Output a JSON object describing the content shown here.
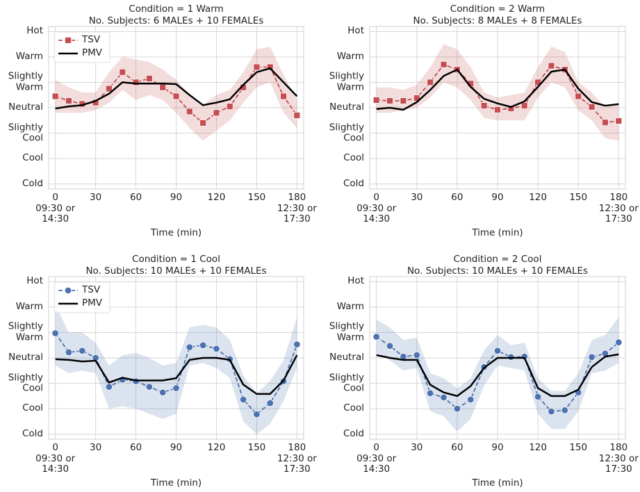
{
  "chart_data": [
    {
      "type": "line",
      "title": "Condition = 1 Warm",
      "subtitle": "No. Subjects: 6 MALEs + 10 FEMALEs",
      "x_label": "Time (min)",
      "x": [
        0,
        10,
        20,
        30,
        40,
        50,
        60,
        70,
        80,
        90,
        100,
        110,
        120,
        130,
        140,
        150,
        160,
        170,
        180
      ],
      "xlim": [
        -5,
        185
      ],
      "ylim": [
        -3.2,
        3.2
      ],
      "grid": true,
      "legend": "upper left",
      "xticks": [
        {
          "value": 0,
          "label": "0\n09:30 or\n14:30"
        },
        30,
        60,
        90,
        120,
        150,
        {
          "value": 180,
          "label": "180\n12:30 or\n17:30"
        }
      ],
      "yticks": [
        {
          "value": -3,
          "label": "Cold"
        },
        {
          "value": -2,
          "label": "Cool"
        },
        {
          "value": -1,
          "label": "Slightly\nCool"
        },
        {
          "value": 0,
          "label": "Neutral"
        },
        {
          "value": 1,
          "label": "Slightly\nWarm"
        },
        {
          "value": 2,
          "label": "Warm"
        },
        {
          "value": 3,
          "label": "Hot"
        }
      ],
      "series": [
        {
          "name": "TSV",
          "color": "#c44e52",
          "marker": "square",
          "dashed": true,
          "values": [
            0.45,
            0.27,
            0.15,
            0.2,
            0.75,
            1.4,
            1.0,
            1.15,
            0.8,
            0.45,
            -0.15,
            -0.6,
            -0.2,
            0.05,
            0.8,
            1.6,
            1.6,
            0.45,
            -0.3
          ],
          "ci_lower": [
            -0.2,
            -0.2,
            -0.2,
            -0.1,
            0.2,
            0.7,
            0.3,
            0.5,
            0.3,
            -0.2,
            -0.8,
            -1.3,
            -0.9,
            -0.5,
            0.2,
            0.8,
            1.0,
            -0.2,
            -0.8
          ],
          "ci_upper": [
            1.1,
            0.8,
            0.6,
            0.6,
            1.4,
            2.0,
            1.9,
            1.8,
            1.5,
            1.1,
            0.5,
            0.1,
            0.5,
            0.7,
            1.4,
            2.3,
            2.4,
            1.3,
            0.3
          ]
        },
        {
          "name": "PMV",
          "color": "#000000",
          "values": [
            -0.03,
            0.05,
            0.1,
            0.27,
            0.55,
            1.0,
            0.95,
            0.95,
            0.95,
            0.93,
            0.5,
            0.1,
            0.2,
            0.33,
            0.9,
            1.4,
            1.55,
            1.0,
            0.45
          ]
        }
      ]
    },
    {
      "type": "line",
      "title": "Condition = 2 Warm",
      "subtitle": "No. Subjects: 8 MALEs + 8 FEMALEs",
      "x_label": "Time (min)",
      "x": [
        0,
        10,
        20,
        30,
        40,
        50,
        60,
        70,
        80,
        90,
        100,
        110,
        120,
        130,
        140,
        150,
        160,
        170,
        180
      ],
      "xlim": [
        -5,
        185
      ],
      "ylim": [
        -3.2,
        3.2
      ],
      "grid": true,
      "xticks": [
        {
          "value": 0,
          "label": "0\n09:30 or\n14:30"
        },
        30,
        60,
        90,
        120,
        150,
        {
          "value": 180,
          "label": "180\n12:30 or\n17:30"
        }
      ],
      "yticks": [
        {
          "value": -3,
          "label": "Cold"
        },
        {
          "value": -2,
          "label": "Cool"
        },
        {
          "value": -1,
          "label": "Slightly\nCool"
        },
        {
          "value": 0,
          "label": "Neutral"
        },
        {
          "value": 1,
          "label": "Slightly\nWarm"
        },
        {
          "value": 2,
          "label": "Warm"
        },
        {
          "value": 3,
          "label": "Hot"
        }
      ],
      "series": [
        {
          "name": "TSV",
          "color": "#c44e52",
          "marker": "square",
          "dashed": true,
          "values": [
            0.3,
            0.27,
            0.27,
            0.38,
            1.0,
            1.7,
            1.5,
            0.95,
            0.08,
            -0.08,
            -0.03,
            0.08,
            1.0,
            1.65,
            1.5,
            0.45,
            0.03,
            -0.58,
            -0.52
          ],
          "ci_lower": [
            -0.2,
            -0.2,
            -0.1,
            0,
            0.4,
            1.0,
            0.8,
            0.3,
            -0.4,
            -0.5,
            -0.5,
            -0.5,
            0.4,
            1.0,
            0.8,
            -0.1,
            -0.5,
            -1.2,
            -1.3
          ],
          "ci_upper": [
            0.8,
            0.8,
            0.7,
            0.9,
            1.6,
            2.5,
            2.3,
            1.6,
            0.6,
            0.4,
            0.5,
            0.6,
            1.6,
            2.4,
            2.2,
            1.0,
            0.6,
            0,
            0.2
          ]
        },
        {
          "name": "PMV",
          "color": "#000000",
          "values": [
            -0.05,
            0,
            -0.08,
            0.22,
            0.7,
            1.25,
            1.5,
            0.82,
            0.35,
            0.17,
            0.03,
            0.25,
            0.82,
            1.42,
            1.5,
            0.75,
            0.22,
            0.08,
            0.14
          ]
        }
      ]
    },
    {
      "type": "line",
      "title": "Condition = 1 Cool",
      "subtitle": "No. Subjects: 10 MALEs + 10 FEMALEs",
      "x_label": "Time (min)",
      "x": [
        0,
        10,
        20,
        30,
        40,
        50,
        60,
        70,
        80,
        90,
        100,
        110,
        120,
        130,
        140,
        150,
        160,
        170,
        180
      ],
      "xlim": [
        -5,
        185
      ],
      "ylim": [
        -3.2,
        3.2
      ],
      "grid": true,
      "legend": "upper left",
      "xticks": [
        {
          "value": 0,
          "label": "0\n09:30 or\n14:30"
        },
        30,
        60,
        90,
        120,
        150,
        {
          "value": 180,
          "label": "180\n12:30 or\n17:30"
        }
      ],
      "yticks": [
        {
          "value": -3,
          "label": "Cold"
        },
        {
          "value": -2,
          "label": "Cool"
        },
        {
          "value": -1,
          "label": "Slightly\nCool"
        },
        {
          "value": 0,
          "label": "Neutral"
        },
        {
          "value": 1,
          "label": "Slightly\nWarm"
        },
        {
          "value": 2,
          "label": "Warm"
        },
        {
          "value": 3,
          "label": "Hot"
        }
      ],
      "series": [
        {
          "name": "TSV",
          "color": "#4c72b0",
          "marker": "circle",
          "dashed": true,
          "values": [
            0.97,
            0.22,
            0.28,
            0,
            -1.14,
            -0.86,
            -0.92,
            -1.14,
            -1.36,
            -1.19,
            0.42,
            0.5,
            0.36,
            -0.05,
            -1.64,
            -2.22,
            -1.78,
            -0.92,
            0.53
          ],
          "ci_lower": [
            -0.3,
            -0.6,
            -0.5,
            -0.6,
            -2.0,
            -1.9,
            -2.0,
            -2.2,
            -2.4,
            -2.2,
            -0.3,
            -0.2,
            -0.4,
            -0.8,
            -2.5,
            -3.0,
            -2.6,
            -1.7,
            -0.4
          ],
          "ci_upper": [
            2.1,
            1.0,
            1.0,
            0.6,
            -0.3,
            0.1,
            0.2,
            0,
            -0.3,
            -0.2,
            1.2,
            1.3,
            1.2,
            0.7,
            -0.7,
            -1.4,
            -0.9,
            -0.1,
            1.6
          ]
        },
        {
          "name": "PMV",
          "color": "#000000",
          "values": [
            -0.05,
            -0.08,
            -0.14,
            -0.11,
            -0.97,
            -0.78,
            -0.89,
            -0.89,
            -0.89,
            -0.8,
            -0.08,
            0,
            0,
            -0.08,
            -1.05,
            -1.42,
            -1.42,
            -0.89,
            0.11
          ]
        }
      ]
    },
    {
      "type": "line",
      "title": "Condition = 2 Cool",
      "subtitle": "No. Subjects: 10 MALEs + 10 FEMALEs",
      "x_label": "Time (min)",
      "x": [
        0,
        10,
        20,
        30,
        40,
        50,
        60,
        70,
        80,
        90,
        100,
        110,
        120,
        130,
        140,
        150,
        160,
        170,
        180
      ],
      "xlim": [
        -5,
        185
      ],
      "ylim": [
        -3.2,
        3.2
      ],
      "grid": true,
      "xticks": [
        {
          "value": 0,
          "label": "0\n09:30 or\n14:30"
        },
        30,
        60,
        90,
        120,
        150,
        {
          "value": 180,
          "label": "180\n12:30 or\n17:30"
        }
      ],
      "yticks": [
        {
          "value": -3,
          "label": "Cold"
        },
        {
          "value": -2,
          "label": "Cool"
        },
        {
          "value": -1,
          "label": "Slightly\nCool"
        },
        {
          "value": 0,
          "label": "Neutral"
        },
        {
          "value": 1,
          "label": "Slightly\nWarm"
        },
        {
          "value": 2,
          "label": "Warm"
        },
        {
          "value": 3,
          "label": "Hot"
        }
      ],
      "series": [
        {
          "name": "TSV",
          "color": "#4c72b0",
          "marker": "circle",
          "dashed": true,
          "values": [
            0.83,
            0.47,
            0.05,
            0.11,
            -1.39,
            -1.56,
            -2.0,
            -1.64,
            -0.36,
            0.28,
            0.03,
            0.05,
            -1.53,
            -2.11,
            -2.06,
            -1.36,
            0.03,
            0.17,
            0.61
          ],
          "ci_lower": [
            0.2,
            -0.1,
            -0.5,
            -0.4,
            -2.1,
            -2.3,
            -2.9,
            -2.4,
            -1.1,
            -0.3,
            -0.4,
            -0.5,
            -2.2,
            -2.8,
            -2.8,
            -2.1,
            -0.6,
            -0.5,
            -0.2
          ],
          "ci_upper": [
            1.5,
            1.2,
            0.7,
            0.8,
            -0.6,
            -0.8,
            -1.2,
            -0.8,
            0.3,
            0.9,
            0.5,
            0.6,
            -0.8,
            -1.3,
            -1.3,
            -0.6,
            0.7,
            0.9,
            1.6
          ]
        },
        {
          "name": "PMV",
          "color": "#000000",
          "values": [
            0.11,
            0,
            -0.08,
            -0.08,
            -1.06,
            -1.36,
            -1.5,
            -1.11,
            -0.39,
            0,
            0,
            0,
            -1.19,
            -1.5,
            -1.5,
            -1.25,
            -0.36,
            0.05,
            0.14
          ]
        }
      ]
    }
  ]
}
